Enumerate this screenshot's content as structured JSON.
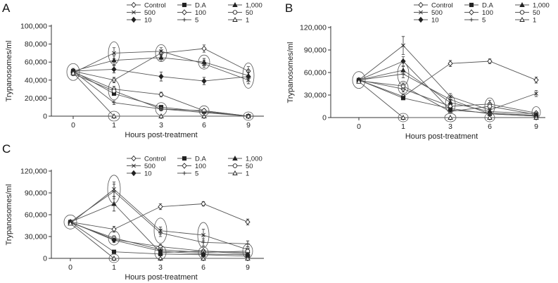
{
  "figure": {
    "legend_labels": [
      "Control",
      "D.A",
      "1,000",
      "500",
      "100",
      "50",
      "10",
      "5",
      "1"
    ],
    "colors": {
      "line": "#555555",
      "marker_fill": "#222222",
      "background": "#ffffff"
    }
  },
  "chart_data": [
    {
      "panel": "A",
      "type": "line",
      "xlabel": "Hours post-treatment",
      "ylabel": "Trypanosomes/ml",
      "categories": [
        "0",
        "1",
        "3",
        "6",
        "9"
      ],
      "yticks": [
        "0",
        "20,000",
        "40,000",
        "60,000",
        "80,000",
        "100,000"
      ],
      "ylim": [
        0,
        100000
      ],
      "legend": "top-right",
      "series": [
        {
          "name": "Control",
          "values": [
            50000,
            40000,
            70000,
            75000,
            50000
          ],
          "err": [
            2000,
            3000,
            3000,
            4000,
            5000
          ]
        },
        {
          "name": "D.A",
          "values": [
            50000,
            25000,
            10000,
            5000,
            0
          ],
          "err": [
            2000,
            2000,
            1000,
            800,
            0
          ]
        },
        {
          "name": "1,000",
          "values": [
            50000,
            62000,
            65000,
            60000,
            45000
          ],
          "err": [
            3000,
            5000,
            4000,
            4000,
            6000
          ]
        },
        {
          "name": "500",
          "values": [
            48000,
            70000,
            72000,
            58000,
            40000
          ],
          "err": [
            2000,
            6000,
            4000,
            4000,
            4000
          ]
        },
        {
          "name": "100",
          "values": [
            49000,
            30000,
            24000,
            6000,
            0
          ],
          "err": [
            2000,
            3000,
            2500,
            1000,
            0
          ]
        },
        {
          "name": "50",
          "values": [
            47000,
            28000,
            8000,
            6000,
            0
          ],
          "err": [
            2000,
            2000,
            1000,
            1000,
            0
          ]
        },
        {
          "name": "10",
          "values": [
            50000,
            52000,
            44000,
            39000,
            44000
          ],
          "err": [
            2000,
            4000,
            5000,
            4000,
            5000
          ]
        },
        {
          "name": "5",
          "values": [
            50000,
            15000,
            8000,
            4000,
            0
          ],
          "err": [
            2000,
            2000,
            1000,
            800,
            0
          ]
        },
        {
          "name": "1",
          "values": [
            48000,
            0,
            0,
            0,
            0
          ],
          "err": [
            2000,
            0,
            0,
            0,
            0
          ]
        }
      ]
    },
    {
      "panel": "B",
      "type": "line",
      "xlabel": "Hours post-treatment",
      "ylabel": "Trypanosomes/ml",
      "categories": [
        "0",
        "1",
        "3",
        "6",
        "9"
      ],
      "yticks": [
        "0",
        "30,000",
        "60,000",
        "90,000",
        "120,000"
      ],
      "ylim": [
        0,
        120000
      ],
      "legend": "top-right",
      "series": [
        {
          "name": "Control",
          "values": [
            50000,
            28000,
            72000,
            75000,
            50000
          ],
          "err": [
            2000,
            3000,
            4000,
            3000,
            4000
          ]
        },
        {
          "name": "D.A",
          "values": [
            50000,
            26000,
            12000,
            5000,
            2000
          ],
          "err": [
            2000,
            2000,
            2000,
            1000,
            800
          ]
        },
        {
          "name": "1,000",
          "values": [
            50000,
            63000,
            20000,
            8000,
            5000
          ],
          "err": [
            2000,
            5000,
            3000,
            2000,
            2000
          ]
        },
        {
          "name": "500",
          "values": [
            50000,
            96000,
            28000,
            10000,
            32000
          ],
          "err": [
            2000,
            12000,
            4000,
            3000,
            4000
          ]
        },
        {
          "name": "100",
          "values": [
            50000,
            38000,
            15000,
            18000,
            6000
          ],
          "err": [
            2000,
            4000,
            3000,
            5000,
            2000
          ]
        },
        {
          "name": "50",
          "values": [
            49000,
            42000,
            8000,
            15000,
            4000
          ],
          "err": [
            2000,
            4000,
            2000,
            4000,
            1500
          ]
        },
        {
          "name": "10",
          "values": [
            50000,
            75000,
            10000,
            6000,
            3000
          ],
          "err": [
            2000,
            6000,
            2000,
            2000,
            1000
          ]
        },
        {
          "name": "5",
          "values": [
            50000,
            58000,
            24000,
            5000,
            2000
          ],
          "err": [
            2000,
            5000,
            3000,
            1500,
            800
          ]
        },
        {
          "name": "1",
          "values": [
            48000,
            0,
            0,
            0,
            0
          ],
          "err": [
            2000,
            0,
            0,
            0,
            0
          ]
        }
      ]
    },
    {
      "panel": "C",
      "type": "line",
      "xlabel": "Hours post-treatment",
      "ylabel": "Trypanosomes/ml",
      "categories": [
        "0",
        "1",
        "3",
        "6",
        "9"
      ],
      "yticks": [
        "0",
        "30,000",
        "60,000",
        "90,000",
        "120,000"
      ],
      "ylim": [
        0,
        120000
      ],
      "legend": "top-right",
      "series": [
        {
          "name": "Control",
          "values": [
            50000,
            40000,
            71000,
            75000,
            50000
          ],
          "err": [
            2000,
            4000,
            4000,
            3000,
            4000
          ]
        },
        {
          "name": "D.A",
          "values": [
            50000,
            9000,
            6000,
            5000,
            3000
          ],
          "err": [
            2000,
            1500,
            1000,
            1000,
            800
          ]
        },
        {
          "name": "1,000",
          "values": [
            50000,
            75000,
            8000,
            10000,
            6000
          ],
          "err": [
            2000,
            10000,
            2000,
            2000,
            2000
          ]
        },
        {
          "name": "500",
          "values": [
            48000,
            95000,
            38000,
            32000,
            12000
          ],
          "err": [
            2000,
            10000,
            5000,
            8000,
            4000
          ]
        },
        {
          "name": "100",
          "values": [
            50000,
            26000,
            16000,
            10000,
            8000
          ],
          "err": [
            2000,
            3000,
            3000,
            2000,
            2000
          ]
        },
        {
          "name": "50",
          "values": [
            49000,
            28000,
            12000,
            8000,
            10000
          ],
          "err": [
            2000,
            3000,
            2000,
            2000,
            2000
          ]
        },
        {
          "name": "10",
          "values": [
            50000,
            25000,
            10000,
            6000,
            5000
          ],
          "err": [
            2000,
            3000,
            2000,
            1500,
            1500
          ]
        },
        {
          "name": "5",
          "values": [
            50000,
            92000,
            35000,
            22000,
            20000
          ],
          "err": [
            2000,
            10000,
            5000,
            5000,
            4000
          ]
        },
        {
          "name": "1",
          "values": [
            48000,
            0,
            0,
            0,
            0
          ],
          "err": [
            2000,
            0,
            0,
            0,
            0
          ]
        }
      ]
    }
  ]
}
